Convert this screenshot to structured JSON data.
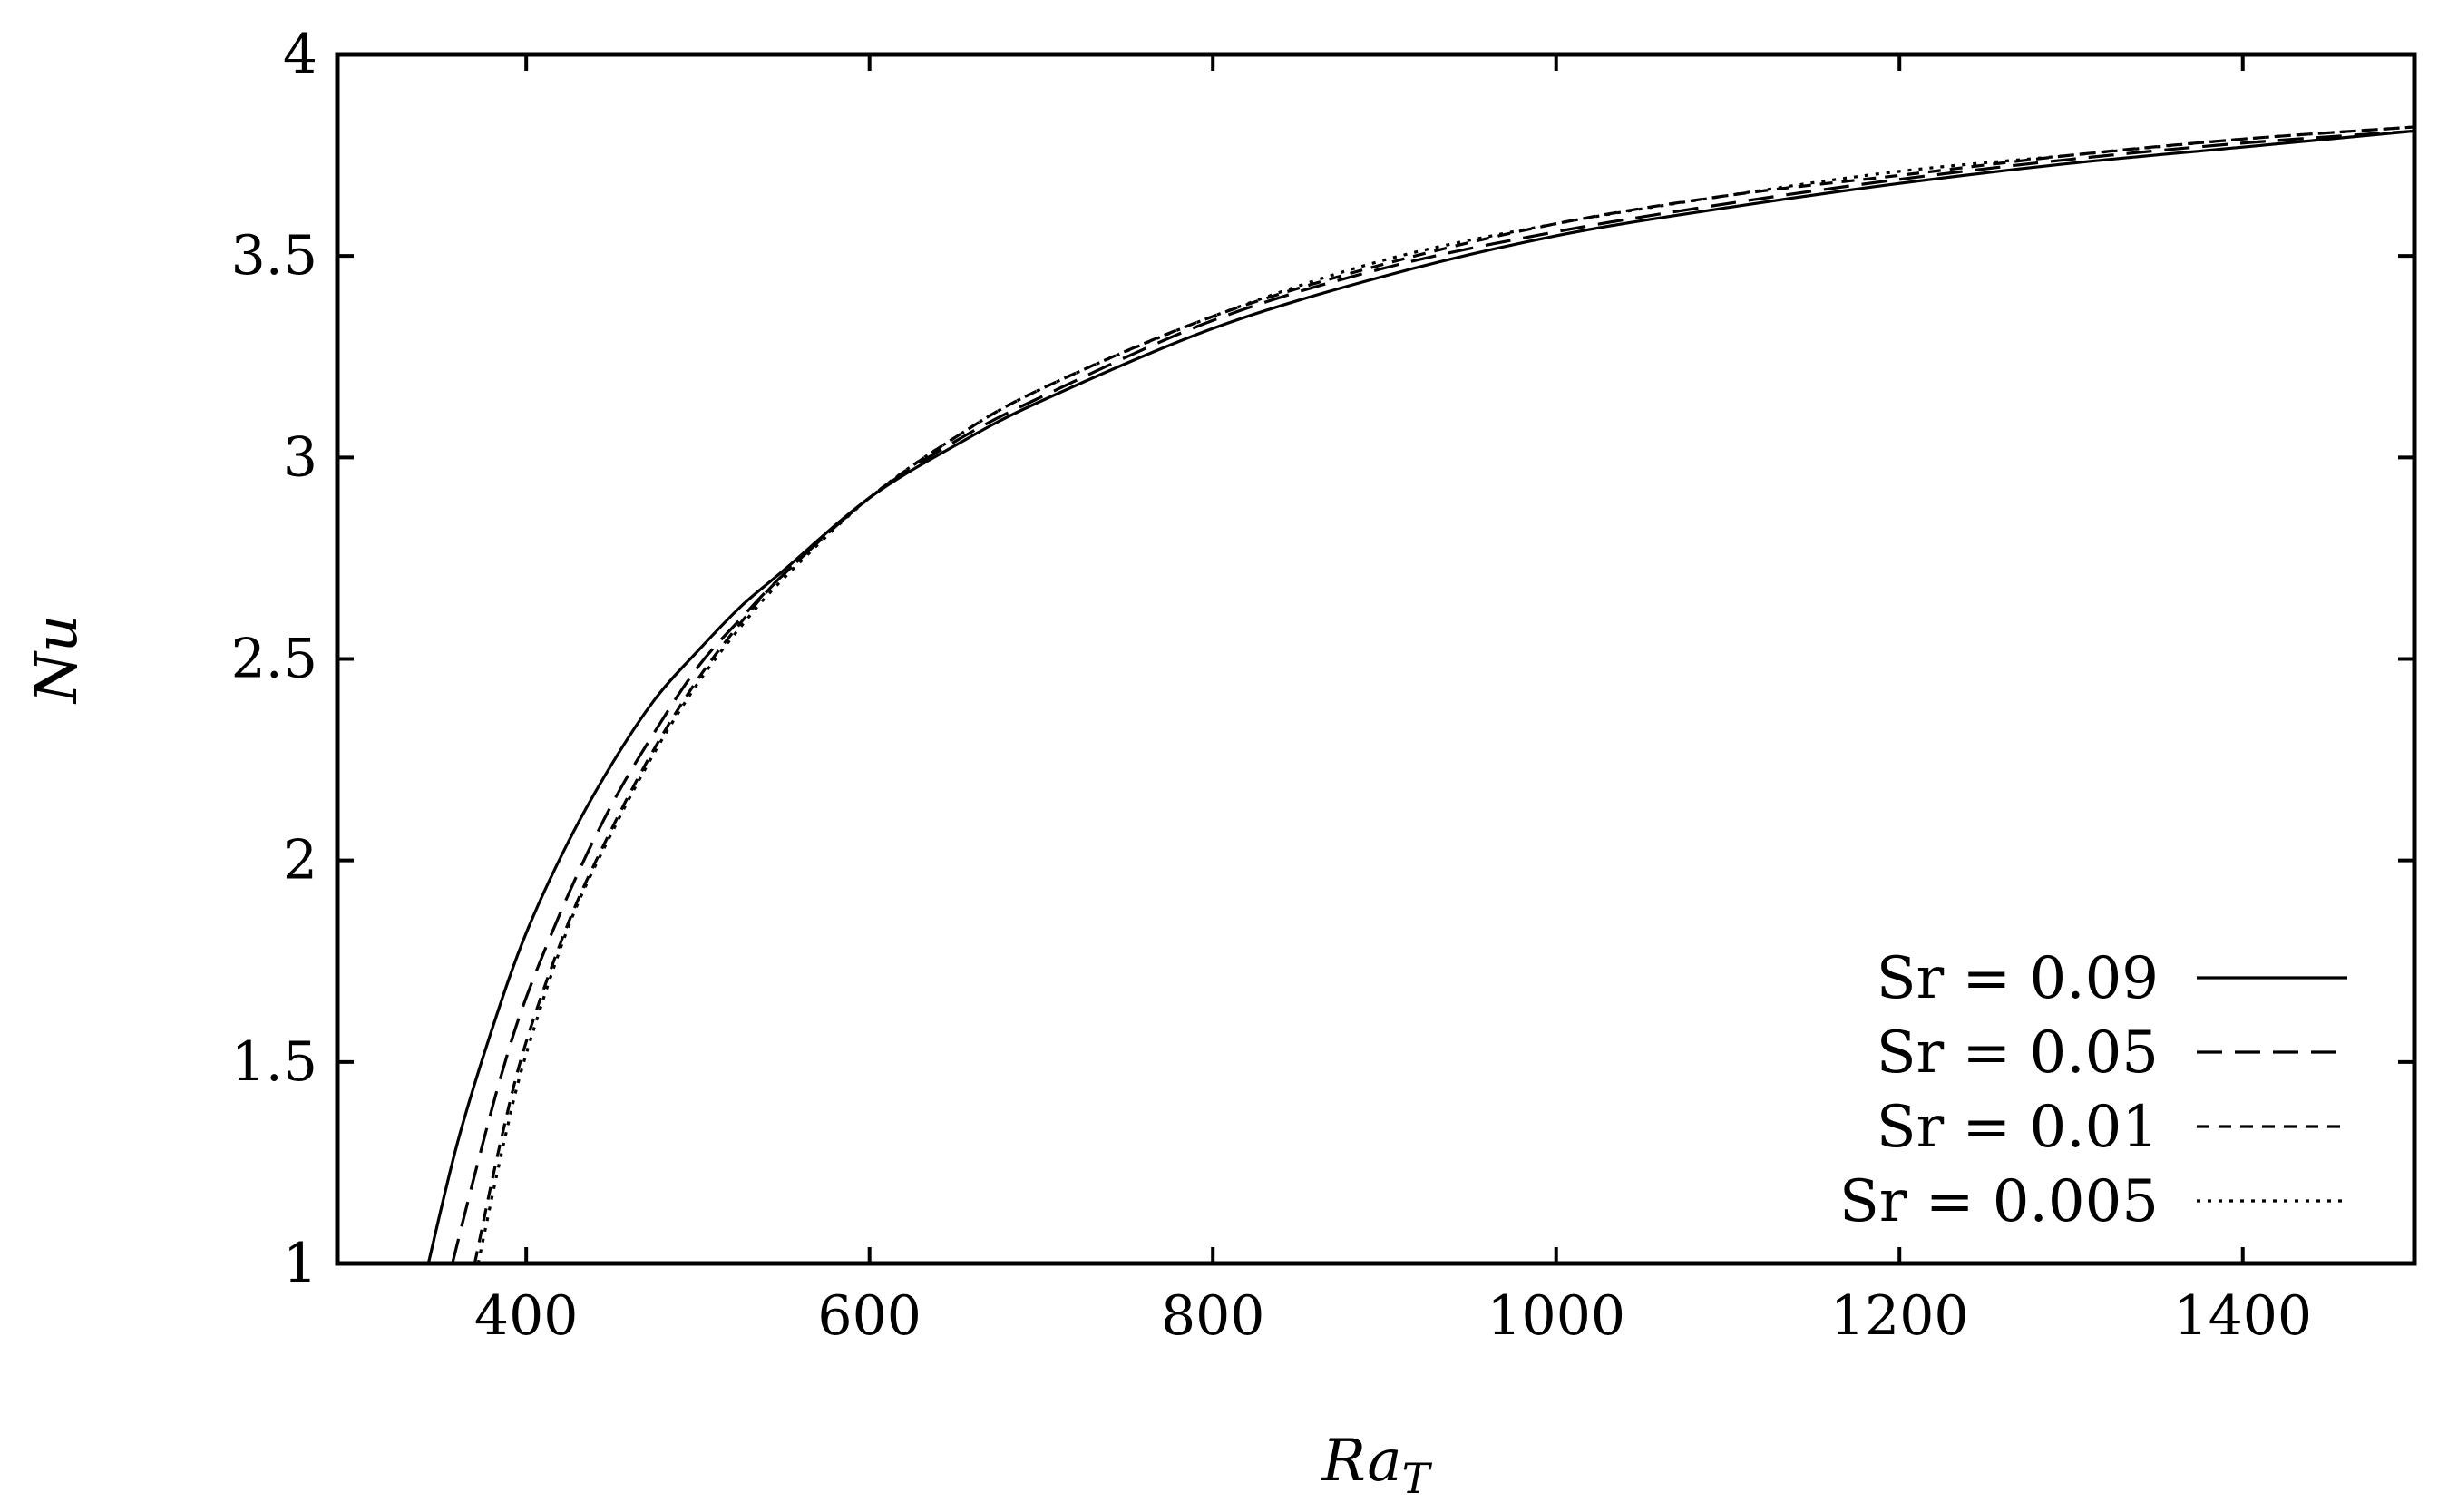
{
  "chart_data": {
    "type": "line",
    "title": "",
    "xlabel": "Ra",
    "xlabel_sub": "T",
    "ylabel": "Nu",
    "xlim": [
      290,
      1500
    ],
    "ylim": [
      1,
      4
    ],
    "xticks": [
      400,
      600,
      800,
      1000,
      1200,
      1400
    ],
    "yticks": [
      1,
      1.5,
      2,
      2.5,
      3,
      3.5,
      4
    ],
    "xtick_labels": [
      "400",
      "600",
      "800",
      "1000",
      "1200",
      "1400"
    ],
    "ytick_labels": [
      "1",
      "1.5",
      "2",
      "2.5",
      "3",
      "3.5",
      "4"
    ],
    "grid": false,
    "legend_position": "bottom-right",
    "series": [
      {
        "name": "Sr = 0.09",
        "label": "Sr = 0.09",
        "dash": "solid",
        "x": [
          343,
          360,
          380,
          400,
          425,
          450,
          475,
          500,
          525,
          550,
          600,
          650,
          700,
          800,
          900,
          1000,
          1100,
          1200,
          1300,
          1400,
          1500
        ],
        "y": [
          1.0,
          1.3,
          1.58,
          1.82,
          2.05,
          2.24,
          2.4,
          2.52,
          2.63,
          2.72,
          2.9,
          3.03,
          3.14,
          3.32,
          3.45,
          3.55,
          3.62,
          3.68,
          3.73,
          3.77,
          3.81
        ]
      },
      {
        "name": "Sr = 0.05",
        "label": "Sr = 0.05",
        "dash": "long-dash",
        "x": [
          357,
          370,
          385,
          400,
          425,
          450,
          475,
          500,
          525,
          550,
          600,
          650,
          700,
          800,
          900,
          1000,
          1100,
          1200,
          1300,
          1400,
          1500
        ],
        "y": [
          1.0,
          1.22,
          1.46,
          1.66,
          1.92,
          2.14,
          2.32,
          2.48,
          2.6,
          2.71,
          2.9,
          3.04,
          3.15,
          3.34,
          3.47,
          3.56,
          3.63,
          3.69,
          3.74,
          3.78,
          3.81
        ]
      },
      {
        "name": "Sr = 0.01",
        "label": "Sr = 0.01",
        "dash": "dash",
        "x": [
          370,
          385,
          400,
          425,
          450,
          475,
          500,
          525,
          550,
          600,
          650,
          700,
          800,
          900,
          1000,
          1100,
          1200,
          1300,
          1400,
          1500
        ],
        "y": [
          1.0,
          1.3,
          1.55,
          1.85,
          2.08,
          2.28,
          2.45,
          2.59,
          2.71,
          2.9,
          3.05,
          3.17,
          3.35,
          3.48,
          3.58,
          3.65,
          3.7,
          3.75,
          3.79,
          3.82
        ]
      },
      {
        "name": "Sr = 0.005",
        "label": "Sr = 0.005",
        "dash": "dot",
        "x": [
          372,
          387,
          400,
          425,
          450,
          475,
          500,
          525,
          550,
          600,
          650,
          700,
          800,
          900,
          1000,
          1100,
          1200,
          1300,
          1400,
          1500
        ],
        "y": [
          1.0,
          1.3,
          1.52,
          1.84,
          2.07,
          2.27,
          2.44,
          2.58,
          2.7,
          2.9,
          3.05,
          3.17,
          3.35,
          3.49,
          3.58,
          3.65,
          3.71,
          3.75,
          3.79,
          3.82
        ]
      }
    ]
  }
}
